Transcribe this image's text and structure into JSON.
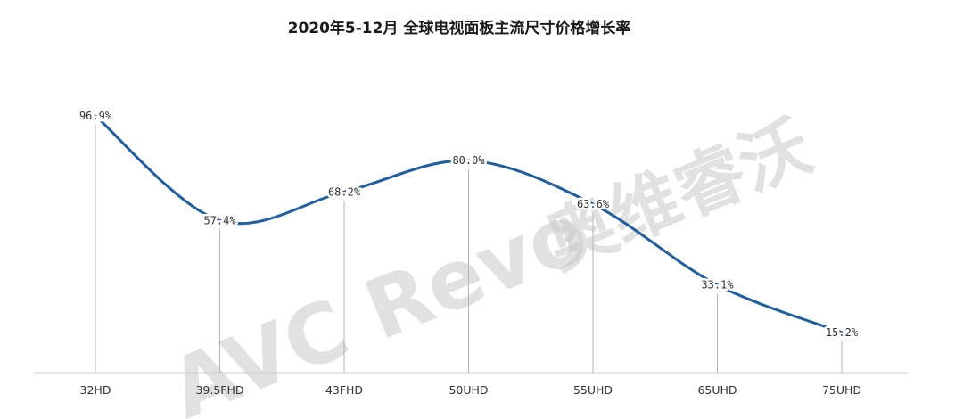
{
  "chart_data": {
    "type": "line",
    "title": "2020年5-12月  全球电视面板主流尺寸价格增长率",
    "categories": [
      "32HD",
      "39.5FHD",
      "43FHD",
      "50UHD",
      "55UHD",
      "65UHD",
      "75UHD"
    ],
    "values": [
      96.9,
      57.4,
      68.2,
      80.0,
      63.6,
      33.1,
      15.2
    ],
    "labels": [
      "96.9%",
      "57.4%",
      "68.2%",
      "80.0%",
      "63.6%",
      "33.1%",
      "15.2%"
    ],
    "series": [
      {
        "values": [
          96.9,
          57.4,
          68.2,
          80.0,
          63.6,
          33.1,
          15.2
        ]
      }
    ],
    "unit": "%",
    "ylim": [
      0,
      105
    ],
    "grid": false,
    "legend": "none",
    "line_color": "#1f5f9e",
    "drop_line_color": "#b5b5b5"
  },
  "watermark": {
    "text_latin": "AVC Revo",
    "text_cn": "奥维睿沃",
    "color": "#c9c9c9"
  }
}
